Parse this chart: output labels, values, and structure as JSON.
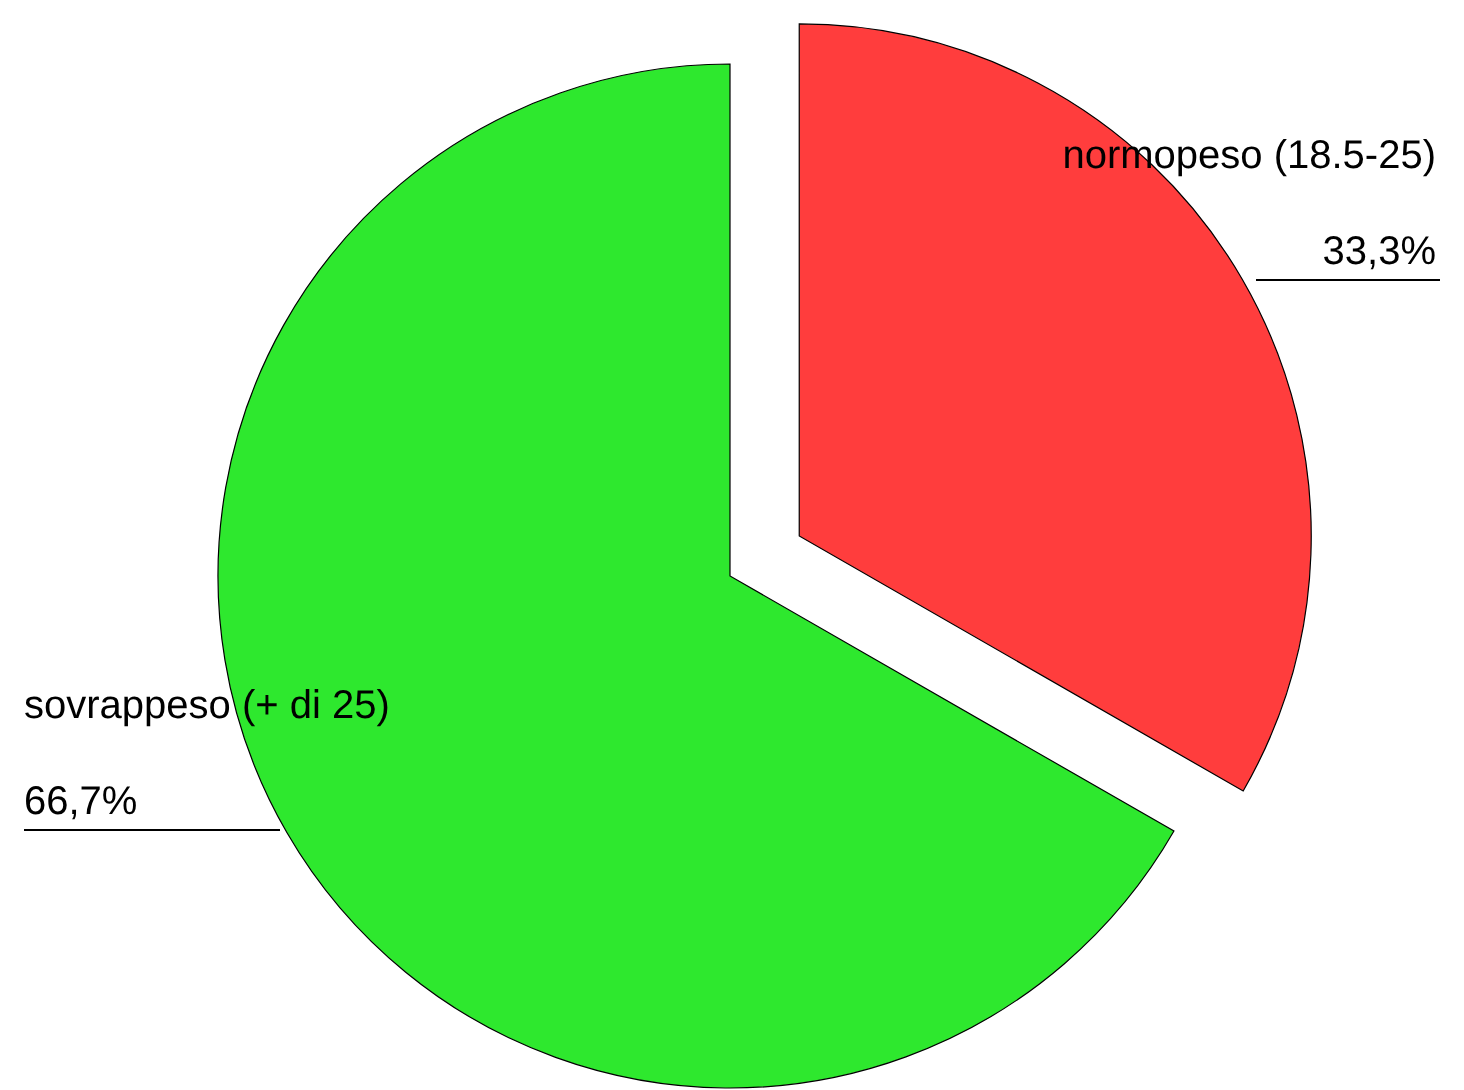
{
  "chart_data": {
    "type": "pie",
    "categories": [
      "normopeso (18.5-25)",
      "sovrappeso (+ di 25)"
    ],
    "values": [
      33.3,
      66.7
    ],
    "value_labels": [
      "33,3%",
      "66,7%"
    ],
    "colors": [
      "#ff3d3d",
      "#2ee82e"
    ]
  }
}
